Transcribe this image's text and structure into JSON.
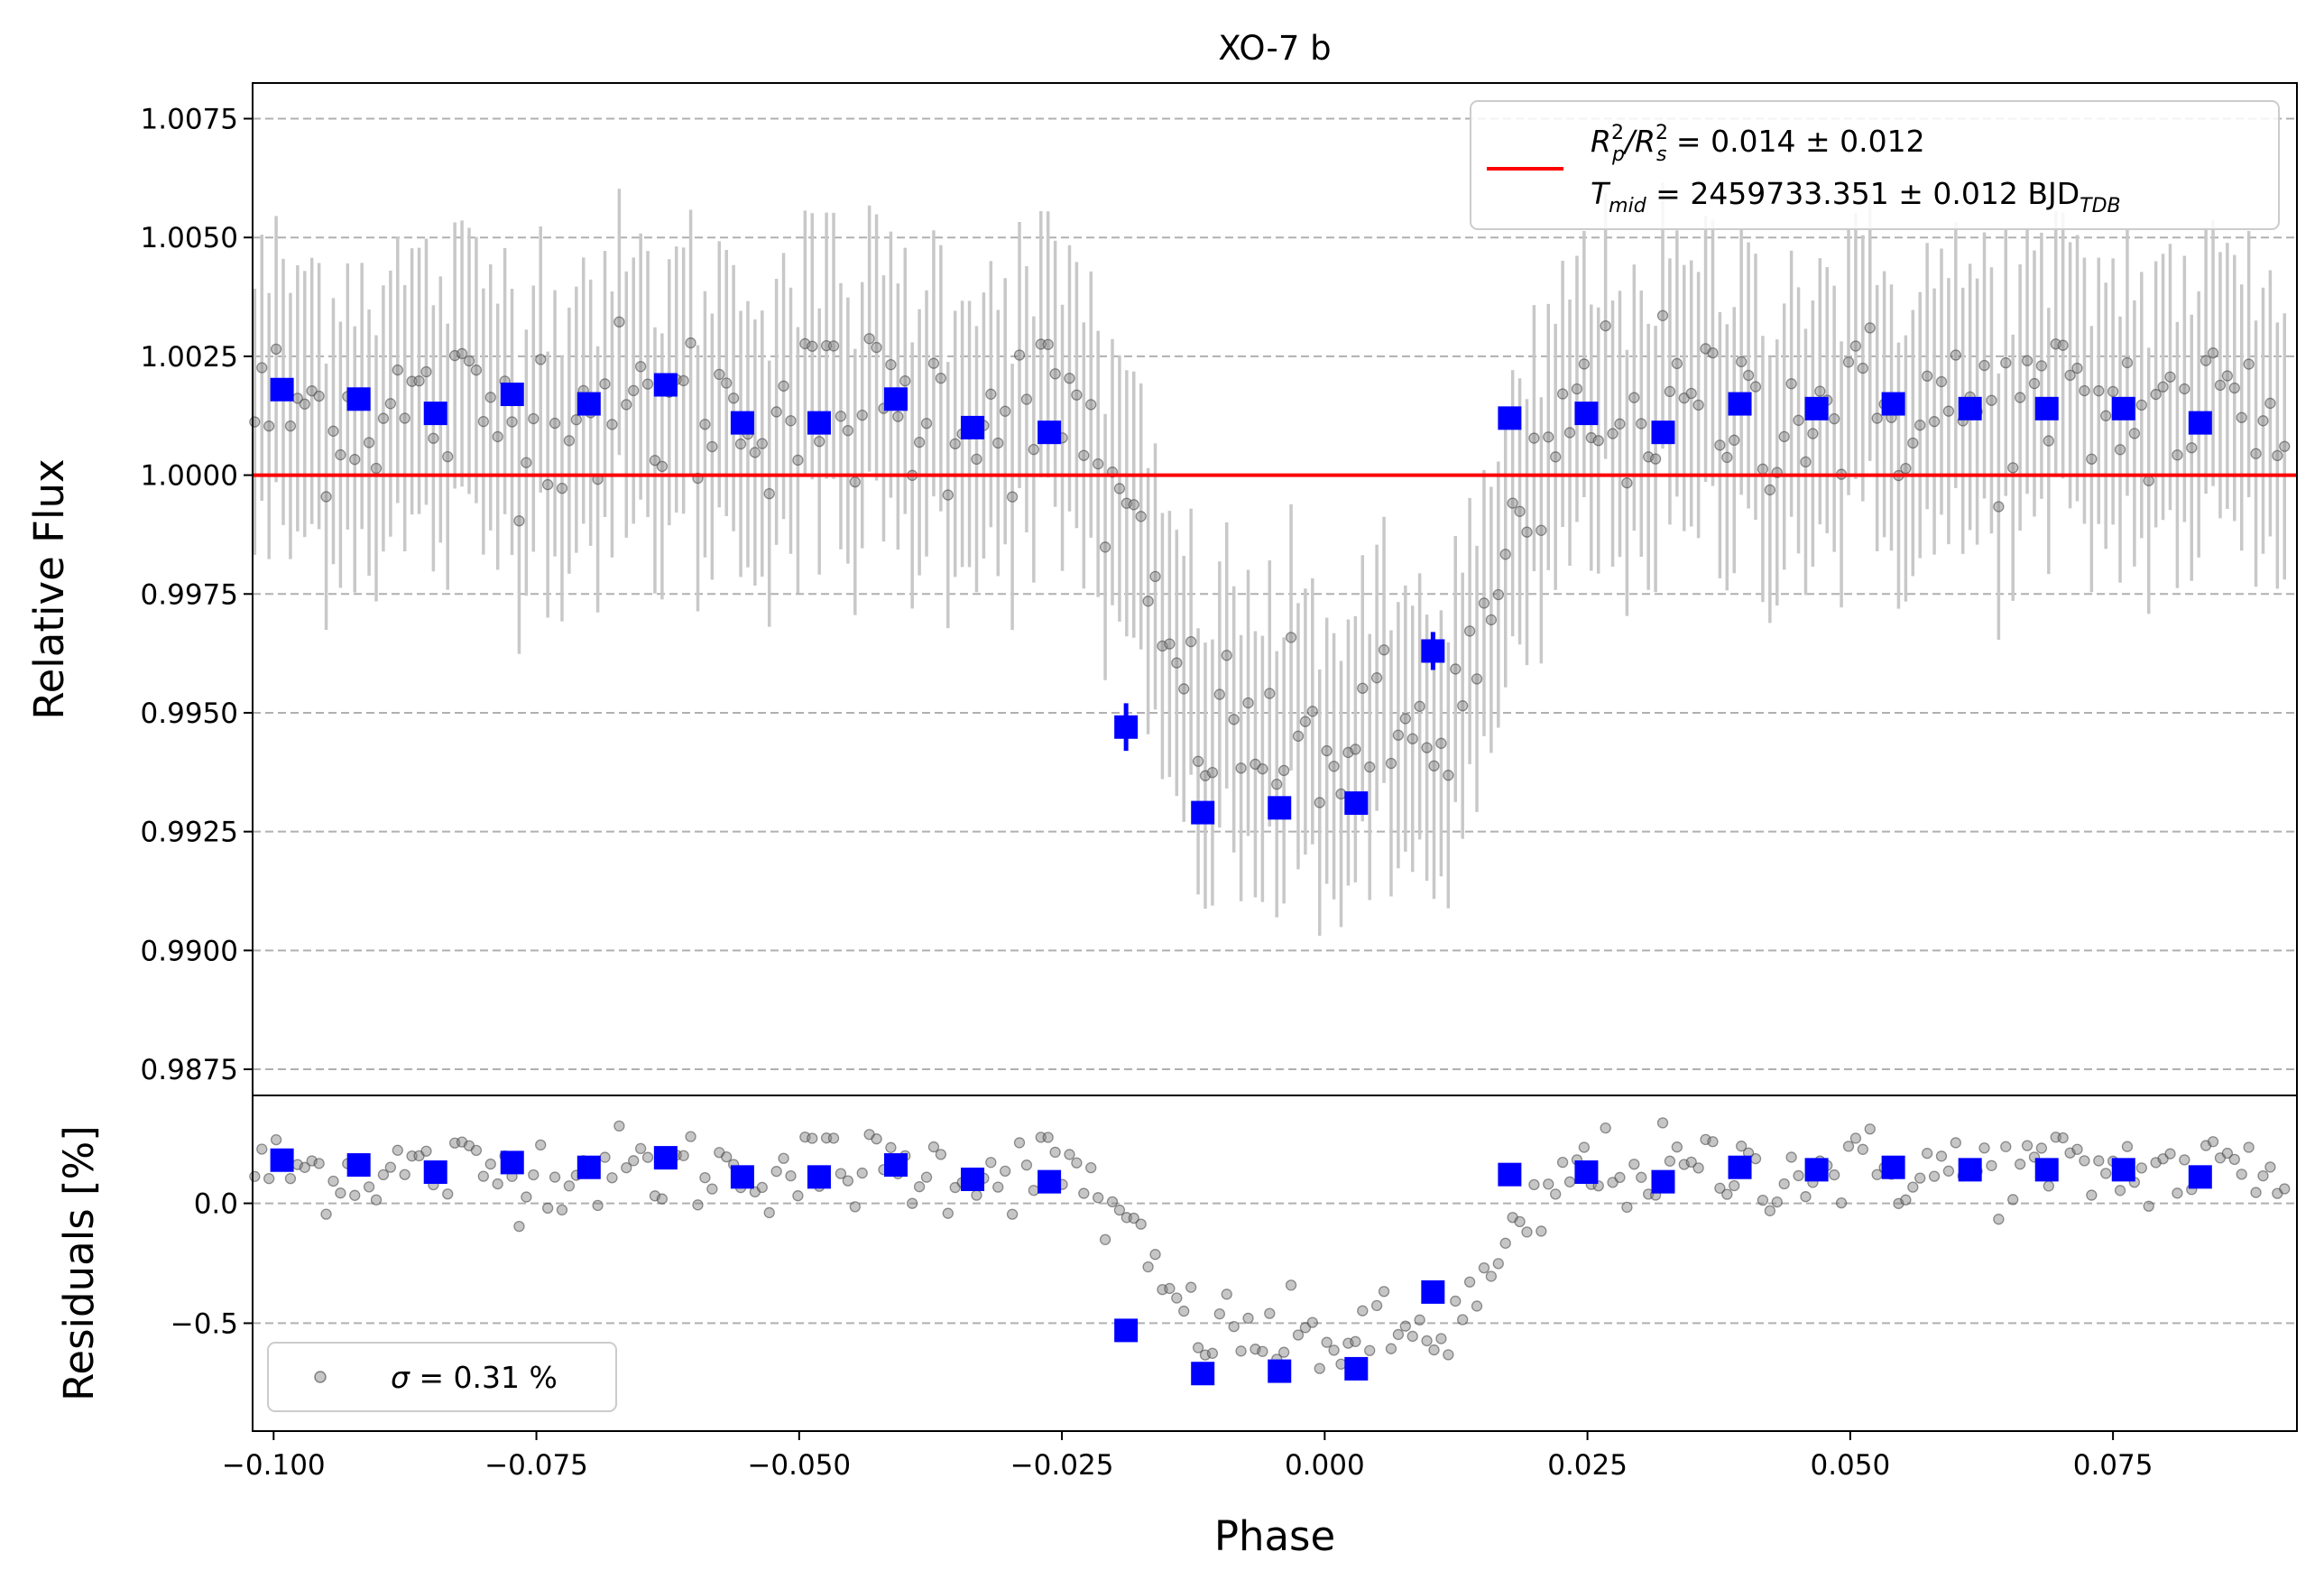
{
  "chart_data": [
    {
      "type": "scatter",
      "title": "XO-7 b",
      "ylabel": "Relative Flux",
      "xlim": [
        -0.102,
        0.0925
      ],
      "ylim": [
        0.98695,
        1.00825
      ],
      "grid": "horizontal dashed",
      "legend_position": "top-right",
      "x_ticks": [
        "−0.100",
        "−0.075",
        "−0.050",
        "−0.025",
        "0.000",
        "0.025",
        "0.050",
        "0.075"
      ],
      "y_ticks": [
        "0.9875",
        "0.9900",
        "0.9925",
        "0.9950",
        "0.9975",
        "1.0000",
        "1.0025",
        "1.0050",
        "1.0075"
      ],
      "legend": {
        "line1_main": "R",
        "line1_sub1": "p",
        "line1_sup1": "2",
        "line1_slash": "/R",
        "line1_sub2": "s",
        "line1_sup2": "2",
        "line1_value": " = 0.014 ± 0.012",
        "line2_main": "T",
        "line2_sub": "mid",
        "line2_value": " = 2459733.351 ± 0.012 BJD",
        "line2_unit_sub": "TDB"
      },
      "model": {
        "name": "Rp²/Rs² = 0.014 ± 0.012, Tmid = 2459733.351 ± 0.012 BJD_TDB",
        "color": "#ff0000",
        "y": 1.0
      },
      "colors": {
        "raw": "#808080",
        "errorbar": "#c8c8c8",
        "binned": "#0000ff",
        "grid": "#b0b0b0"
      },
      "binned": {
        "x": [
          -0.0992,
          -0.0919,
          -0.0846,
          -0.0773,
          -0.07,
          -0.0627,
          -0.0554,
          -0.0481,
          -0.0408,
          -0.0335,
          -0.0262,
          -0.0189,
          -0.0116,
          -0.0043,
          0.003,
          0.0103,
          0.0176,
          0.0249,
          0.0322,
          0.0395,
          0.0468,
          0.0541,
          0.0614,
          0.0687,
          0.076,
          0.0833
        ],
        "y": [
          1.0018,
          1.0016,
          1.0013,
          1.0017,
          1.0015,
          1.0019,
          1.0011,
          1.0011,
          1.0016,
          1.001,
          1.0009,
          0.9947,
          0.9929,
          0.993,
          0.9931,
          0.9963,
          1.0012,
          1.0013,
          1.0009,
          1.0015,
          1.0014,
          1.0015,
          1.0014,
          1.0014,
          1.0014,
          1.0011
        ],
        "yerr": [
          0.0002,
          0.0002,
          0.0002,
          0.0002,
          0.0002,
          0.0002,
          0.0002,
          0.0002,
          0.0002,
          0.0002,
          0.0002,
          0.0005,
          0.0002,
          0.0002,
          0.0002,
          0.0004,
          0.0002,
          0.0002,
          0.0002,
          0.0002,
          0.0002,
          0.0002,
          0.0002,
          0.0002,
          0.0002,
          0.0002
        ]
      },
      "raw_points": {
        "x_start": -0.1018,
        "x_step": 0.00068,
        "count": 285,
        "yerr": 0.0028,
        "transit_center": 0.0,
        "transit_depth": 0.0071,
        "baseline": 1.0014,
        "scatter": 0.0009
      }
    },
    {
      "type": "scatter",
      "ylabel": "Residuals [%]",
      "xlabel": "Phase",
      "xlim": [
        -0.102,
        0.0925
      ],
      "ylim": [
        -0.95,
        0.45
      ],
      "x_ticks": [
        "−0.100",
        "−0.075",
        "−0.050",
        "−0.025",
        "0.000",
        "0.025",
        "0.050",
        "0.075"
      ],
      "y_ticks": [
        "−0.5",
        "0.0"
      ],
      "legend_position": "lower-left",
      "legend": {
        "sigma_symbol": "σ",
        "sigma_text": " = 0.31 %"
      },
      "binned": {
        "y": [
          0.18,
          0.16,
          0.13,
          0.17,
          0.15,
          0.19,
          0.11,
          0.11,
          0.16,
          0.1,
          0.09,
          -0.53,
          -0.71,
          -0.7,
          -0.69,
          -0.37,
          0.12,
          0.13,
          0.09,
          0.15,
          0.14,
          0.15,
          0.14,
          0.14,
          0.14,
          0.11
        ]
      }
    }
  ]
}
